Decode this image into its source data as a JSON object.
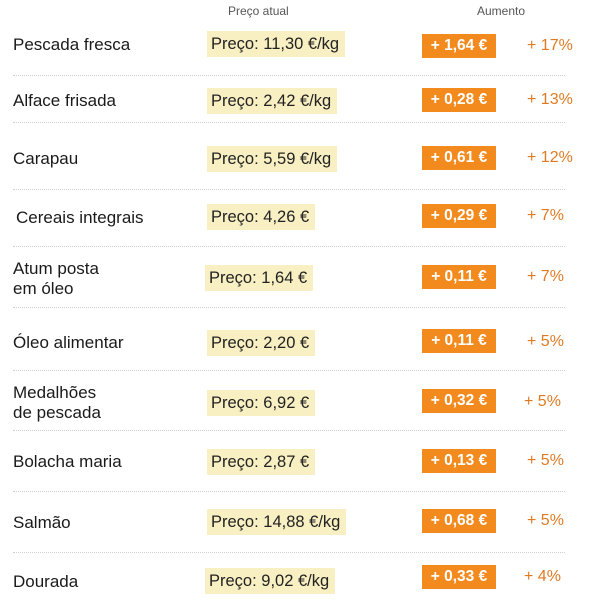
{
  "headers": {
    "price": "Preço atual",
    "increase": "Aumento"
  },
  "rows": [
    {
      "name": "Pescada fresca",
      "price": "Preço: 11,30 €/kg",
      "increase": "+ 1,64 €",
      "pct": "+ 17%"
    },
    {
      "name": "Alface frisada",
      "price": "Preço: 2,42 €/kg",
      "increase": "+ 0,28 €",
      "pct": "+ 13%"
    },
    {
      "name": "Carapau",
      "price": "Preço: 5,59 €/kg",
      "increase": "+ 0,61 €",
      "pct": "+ 12%"
    },
    {
      "name": "Cereais integrais",
      "price": "Preço: 4,26 €",
      "increase": "+ 0,29 €",
      "pct": "+ 7%"
    },
    {
      "name": "Atum posta\nem óleo",
      "price": "Preço: 1,64 €",
      "increase": "+ 0,11 €",
      "pct": "+ 7%"
    },
    {
      "name": "Óleo alimentar",
      "price": "Preço: 2,20 €",
      "increase": "+ 0,11 €",
      "pct": "+ 5%"
    },
    {
      "name": "Medalhões\nde pescada",
      "price": "Preço: 6,92 €",
      "increase": "+ 0,32 €",
      "pct": "+ 5%"
    },
    {
      "name": "Bolacha maria",
      "price": "Preço: 2,87 €",
      "increase": "+ 0,13 €",
      "pct": "+ 5%"
    },
    {
      "name": "Salmão",
      "price": "Preço: 14,88 €/kg",
      "increase": "+ 0,68 €",
      "pct": "+ 5%"
    },
    {
      "name": "Dourada",
      "price": "Preço: 9,02 €/kg",
      "increase": "+ 0,33 €",
      "pct": "+ 4%"
    }
  ]
}
